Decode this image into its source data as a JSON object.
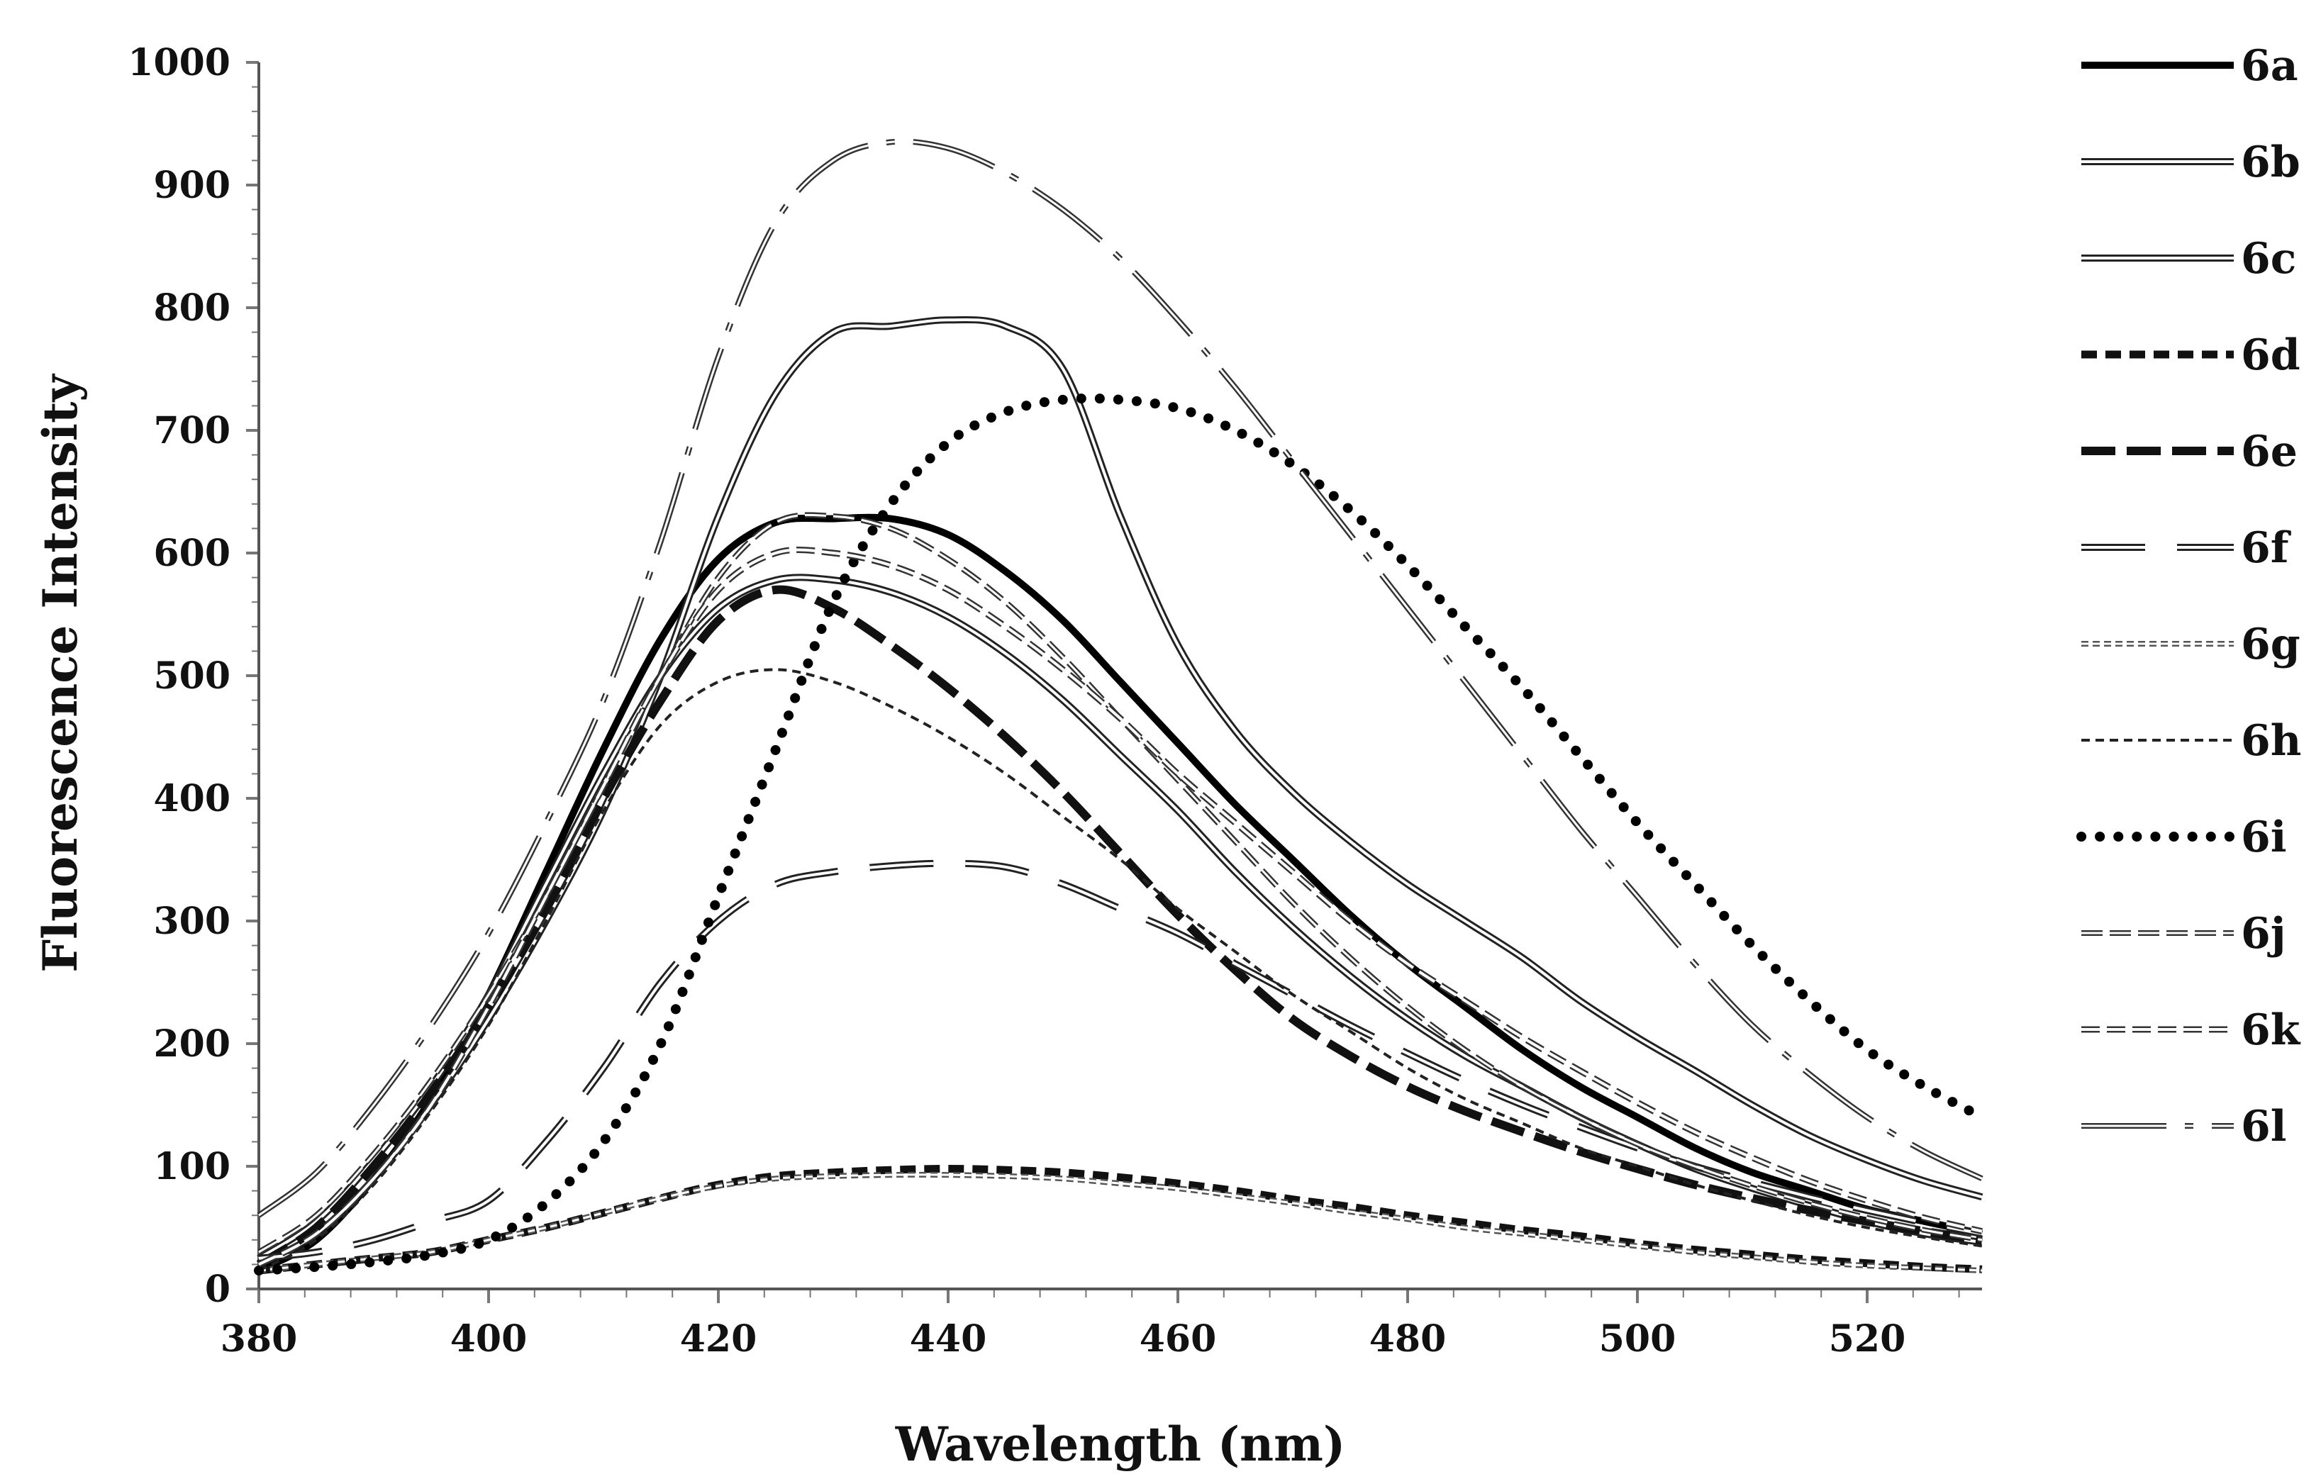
{
  "chart_data": {
    "type": "line",
    "title": "",
    "xlabel": "Wavelength (nm)",
    "ylabel": "Fluorescence Intensity",
    "xlim": [
      380,
      530
    ],
    "ylim": [
      0,
      1000
    ],
    "xticks": [
      380,
      400,
      420,
      440,
      460,
      480,
      500,
      520
    ],
    "yticks": [
      0,
      100,
      200,
      300,
      400,
      500,
      600,
      700,
      800,
      900,
      1000
    ],
    "grid": false,
    "legend_position": "right",
    "x": [
      380,
      385,
      390,
      395,
      400,
      405,
      410,
      415,
      420,
      425,
      430,
      435,
      440,
      445,
      450,
      455,
      460,
      465,
      470,
      475,
      480,
      485,
      490,
      495,
      500,
      505,
      510,
      515,
      520,
      525,
      530
    ],
    "series": [
      {
        "name": "6a",
        "style": "solid-thick",
        "values": [
          15,
          40,
          90,
          155,
          240,
          340,
          440,
          530,
          595,
          625,
          628,
          628,
          615,
          585,
          545,
          495,
          445,
          395,
          350,
          305,
          265,
          230,
          195,
          165,
          140,
          115,
          95,
          80,
          65,
          55,
          45
        ]
      },
      {
        "name": "6b",
        "style": "double",
        "values": [
          25,
          55,
          105,
          165,
          240,
          330,
          420,
          500,
          555,
          578,
          578,
          568,
          548,
          518,
          480,
          435,
          390,
          340,
          295,
          255,
          220,
          190,
          165,
          140,
          118,
          98,
          82,
          68,
          55,
          45,
          38
        ]
      },
      {
        "name": "6c",
        "style": "double",
        "values": [
          20,
          45,
          90,
          150,
          220,
          300,
          390,
          500,
          630,
          730,
          780,
          785,
          790,
          785,
          750,
          630,
          525,
          455,
          405,
          365,
          330,
          300,
          270,
          235,
          205,
          178,
          150,
          125,
          105,
          88,
          75
        ]
      },
      {
        "name": "6d",
        "style": "dash-thick",
        "values": [
          15,
          20,
          25,
          30,
          40,
          50,
          62,
          74,
          85,
          92,
          95,
          97,
          98,
          97,
          95,
          91,
          86,
          80,
          73,
          67,
          60,
          54,
          48,
          43,
          37,
          32,
          28,
          24,
          21,
          18,
          16
        ]
      },
      {
        "name": "6e",
        "style": "long-dash-thick",
        "values": [
          20,
          50,
          100,
          160,
          230,
          310,
          400,
          480,
          545,
          570,
          555,
          525,
          490,
          450,
          405,
          355,
          305,
          260,
          220,
          190,
          165,
          145,
          128,
          112,
          98,
          85,
          74,
          64,
          55,
          47,
          40
        ]
      },
      {
        "name": "6f",
        "style": "long-dash-double",
        "values": [
          25,
          30,
          40,
          55,
          72,
          120,
          180,
          250,
          300,
          330,
          340,
          345,
          347,
          344,
          330,
          310,
          290,
          265,
          240,
          215,
          192,
          170,
          150,
          132,
          115,
          100,
          87,
          75,
          64,
          54,
          45
        ]
      },
      {
        "name": "6g",
        "style": "double-dash",
        "values": [
          15,
          20,
          25,
          30,
          40,
          50,
          62,
          74,
          84,
          90,
          92,
          93,
          93,
          92,
          90,
          86,
          82,
          76,
          70,
          63,
          57,
          50,
          45,
          40,
          35,
          30,
          26,
          22,
          19,
          17,
          15
        ]
      },
      {
        "name": "6h",
        "style": "short-dash",
        "values": [
          15,
          40,
          85,
          145,
          215,
          300,
          390,
          460,
          495,
          505,
          495,
          475,
          450,
          420,
          385,
          350,
          310,
          275,
          240,
          210,
          180,
          155,
          135,
          115,
          100,
          85,
          72,
          60,
          50,
          42,
          35
        ]
      },
      {
        "name": "6i",
        "style": "dotted",
        "values": [
          15,
          18,
          22,
          28,
          40,
          70,
          120,
          200,
          320,
          440,
          560,
          640,
          690,
          715,
          725,
          725,
          718,
          700,
          672,
          635,
          590,
          540,
          490,
          435,
          380,
          330,
          280,
          235,
          195,
          165,
          140
        ]
      },
      {
        "name": "6j",
        "style": "dash-double",
        "values": [
          30,
          60,
          110,
          170,
          240,
          320,
          410,
          500,
          580,
          625,
          630,
          620,
          595,
          560,
          515,
          465,
          415,
          365,
          315,
          270,
          230,
          195,
          165,
          140,
          118,
          100,
          84,
          70,
          58,
          48,
          40
        ]
      },
      {
        "name": "6k",
        "style": "dash-hollow",
        "values": [
          20,
          45,
          90,
          150,
          230,
          320,
          410,
          500,
          570,
          600,
          600,
          590,
          570,
          540,
          505,
          465,
          420,
          380,
          340,
          300,
          265,
          235,
          205,
          178,
          152,
          128,
          107,
          88,
          72,
          58,
          47
        ]
      },
      {
        "name": "6l",
        "style": "dash-dot-double",
        "values": [
          60,
          95,
          150,
          215,
          290,
          380,
          480,
          610,
          760,
          870,
          920,
          935,
          930,
          910,
          880,
          840,
          790,
          735,
          675,
          615,
          555,
          495,
          435,
          375,
          320,
          265,
          215,
          175,
          140,
          112,
          90
        ]
      }
    ]
  }
}
